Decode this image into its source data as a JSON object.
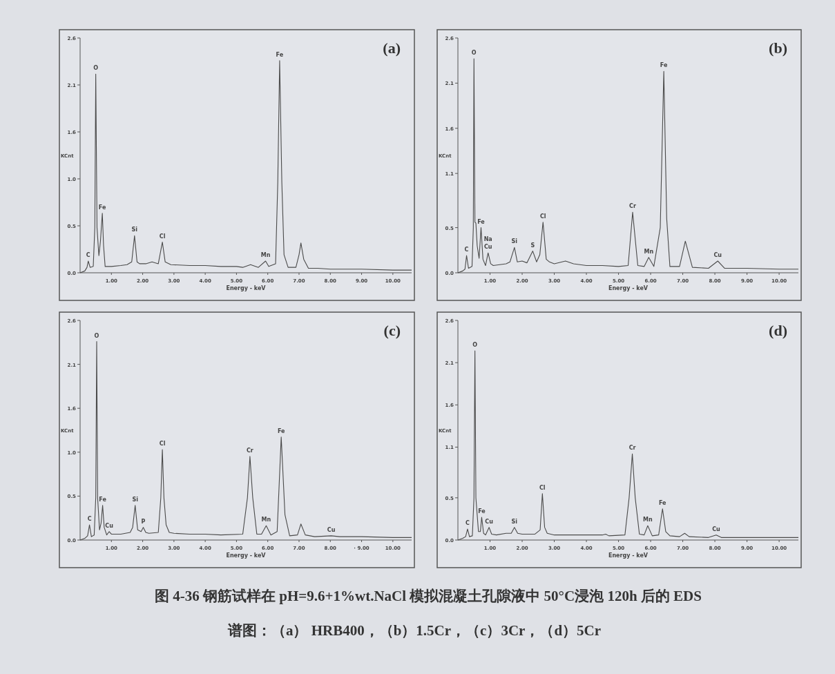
{
  "chart_data": [
    {
      "type": "line",
      "title": "(a)",
      "xlabel": "Energy - keV",
      "ylabel": "KCnt",
      "xlim": [
        0,
        10.6
      ],
      "ylim": [
        0,
        2.6
      ],
      "xticks": [
        {
          "value": 1,
          "label": "1.00"
        },
        {
          "value": 2,
          "label": "2.00"
        },
        {
          "value": 3,
          "label": "3.00"
        },
        {
          "value": 4,
          "label": "4.00"
        },
        {
          "value": 5,
          "label": "5.00"
        },
        {
          "value": 6,
          "label": "6.00"
        },
        {
          "value": 7,
          "label": "7.00"
        },
        {
          "value": 8,
          "label": "8.00"
        },
        {
          "value": 9,
          "label": "9.00"
        },
        {
          "value": 10,
          "label": "10.00"
        }
      ],
      "yticks": [
        {
          "value": 0,
          "label": "0.0"
        },
        {
          "value": 0.52,
          "label": "0.5"
        },
        {
          "value": 1.04,
          "label": "1.0"
        },
        {
          "value": 1.56,
          "label": "1.6"
        },
        {
          "value": 2.08,
          "label": "2.1"
        },
        {
          "value": 2.6,
          "label": "2.6"
        }
      ],
      "color": "#4a4a4a",
      "x": [
        0,
        0.15,
        0.22,
        0.26,
        0.32,
        0.42,
        0.47,
        0.5,
        0.54,
        0.6,
        0.65,
        0.71,
        0.75,
        0.8,
        1.0,
        1.3,
        1.5,
        1.65,
        1.74,
        1.82,
        1.9,
        2.1,
        2.3,
        2.5,
        2.63,
        2.72,
        2.9,
        3.5,
        4.0,
        4.5,
        5.0,
        5.2,
        5.45,
        5.7,
        5.93,
        6.03,
        6.25,
        6.32,
        6.38,
        6.45,
        6.52,
        6.65,
        6.9,
        7.0,
        7.06,
        7.15,
        7.3,
        7.6,
        8.0,
        9.0,
        10.0,
        10.6
      ],
      "values": [
        0,
        0.02,
        0.06,
        0.13,
        0.06,
        0.07,
        0.5,
        2.2,
        0.5,
        0.19,
        0.35,
        0.66,
        0.3,
        0.07,
        0.07,
        0.08,
        0.09,
        0.12,
        0.41,
        0.12,
        0.1,
        0.1,
        0.12,
        0.1,
        0.34,
        0.12,
        0.09,
        0.08,
        0.08,
        0.07,
        0.07,
        0.06,
        0.09,
        0.06,
        0.13,
        0.07,
        0.1,
        1.0,
        2.35,
        1.0,
        0.2,
        0.06,
        0.06,
        0.2,
        0.33,
        0.15,
        0.05,
        0.05,
        0.04,
        0.04,
        0.03,
        0.03
      ],
      "annotations": [
        {
          "text": "C",
          "x": 0.26,
          "y": 0.13
        },
        {
          "text": "O",
          "x": 0.5,
          "y": 2.2
        },
        {
          "text": "Fe",
          "x": 0.71,
          "y": 0.66
        },
        {
          "text": "Si",
          "x": 1.74,
          "y": 0.41
        },
        {
          "text": "Cl",
          "x": 2.63,
          "y": 0.34
        },
        {
          "text": "Mn",
          "x": 5.93,
          "y": 0.13
        },
        {
          "text": "Fe",
          "x": 6.38,
          "y": 2.35
        }
      ]
    },
    {
      "type": "line",
      "title": "(b)",
      "xlabel": "Energy - keV",
      "ylabel": "KCnt",
      "xlim": [
        0,
        10.6
      ],
      "ylim": [
        0,
        2.6
      ],
      "xticks": [
        {
          "value": 1,
          "label": "1.00"
        },
        {
          "value": 2,
          "label": "2.00"
        },
        {
          "value": 3,
          "label": "3.00"
        },
        {
          "value": 4,
          "label": "4.00"
        },
        {
          "value": 5,
          "label": "5.00"
        },
        {
          "value": 6,
          "label": "6.00"
        },
        {
          "value": 7,
          "label": "7.00"
        },
        {
          "value": 8,
          "label": "8.00"
        },
        {
          "value": 9,
          "label": "9.00"
        },
        {
          "value": 10,
          "label": "10.00"
        }
      ],
      "yticks": [
        {
          "value": 0,
          "label": "0.0"
        },
        0.5,
        1.1,
        1.6,
        2.1,
        2.6
      ],
      "color": "#4a4a4a",
      "x": [
        0,
        0.15,
        0.22,
        0.27,
        0.33,
        0.44,
        0.48,
        0.5,
        0.53,
        0.56,
        0.6,
        0.66,
        0.72,
        0.78,
        0.86,
        0.94,
        1.02,
        1.1,
        1.3,
        1.5,
        1.62,
        1.76,
        1.85,
        2.0,
        2.15,
        2.33,
        2.45,
        2.55,
        2.65,
        2.75,
        2.85,
        3.0,
        3.35,
        3.6,
        4.0,
        4.5,
        5.0,
        5.3,
        5.44,
        5.6,
        5.8,
        5.94,
        6.1,
        6.3,
        6.41,
        6.5,
        6.6,
        6.9,
        7.08,
        7.3,
        7.8,
        8.09,
        8.3,
        9.0,
        10.0,
        10.6
      ],
      "values": [
        0,
        0.02,
        0.04,
        0.19,
        0.05,
        0.07,
        0.5,
        2.37,
        0.56,
        0.55,
        0.3,
        0.16,
        0.5,
        0.15,
        0.08,
        0.22,
        0.1,
        0.08,
        0.09,
        0.1,
        0.12,
        0.28,
        0.12,
        0.13,
        0.11,
        0.24,
        0.12,
        0.2,
        0.56,
        0.15,
        0.12,
        0.1,
        0.13,
        0.1,
        0.08,
        0.08,
        0.07,
        0.08,
        0.67,
        0.08,
        0.07,
        0.17,
        0.07,
        0.5,
        2.23,
        0.6,
        0.07,
        0.07,
        0.35,
        0.06,
        0.05,
        0.13,
        0.05,
        0.05,
        0.04,
        0.04
      ],
      "annotations": [
        {
          "text": "C",
          "x": 0.27,
          "y": 0.19
        },
        {
          "text": "O",
          "x": 0.5,
          "y": 2.37
        },
        {
          "text": "Fe",
          "x": 0.72,
          "y": 0.5
        },
        {
          "text": "Na",
          "x": 0.94,
          "y": 0.22
        },
        {
          "text": "Cu",
          "x": 0.94,
          "y": 0.22
        },
        {
          "text": "Si",
          "x": 1.76,
          "y": 0.28
        },
        {
          "text": "S",
          "x": 2.33,
          "y": 0.24
        },
        {
          "text": "Cl",
          "x": 2.65,
          "y": 0.56
        },
        {
          "text": "Cr",
          "x": 5.44,
          "y": 0.67
        },
        {
          "text": "Mn",
          "x": 5.94,
          "y": 0.17
        },
        {
          "text": "Fe",
          "x": 6.41,
          "y": 2.23
        },
        {
          "text": "Cu",
          "x": 8.09,
          "y": 0.13
        }
      ]
    },
    {
      "type": "line",
      "title": "(c)",
      "xlabel": "Energy - keV",
      "ylabel": "KCnt",
      "xlim": [
        0,
        10.6
      ],
      "ylim": [
        0,
        2.6
      ],
      "xticks": [
        {
          "value": 1,
          "label": "1.00"
        },
        {
          "value": 2,
          "label": "2.00"
        },
        {
          "value": 3,
          "label": "3.00"
        },
        {
          "value": 4,
          "label": "4.00"
        },
        {
          "value": 5,
          "label": "5.00"
        },
        {
          "value": 6,
          "label": "6.00"
        },
        {
          "value": 7,
          "label": "7.00"
        },
        {
          "value": 8,
          "label": "8.00"
        },
        {
          "value": 9,
          "label": "· 9.00"
        },
        {
          "value": 10,
          "label": "10.00"
        }
      ],
      "yticks": [
        {
          "value": 0,
          "label": "0.0"
        },
        {
          "value": 0.52,
          "label": "0.5"
        },
        {
          "value": 1.04,
          "label": "1.0"
        },
        {
          "value": 1.56,
          "label": "1.6"
        },
        {
          "value": 2.08,
          "label": "2.1"
        },
        {
          "value": 2.6,
          "label": "2.6"
        }
      ],
      "color": "#4a4a4a",
      "x": [
        0,
        0.15,
        0.24,
        0.3,
        0.36,
        0.45,
        0.5,
        0.53,
        0.56,
        0.62,
        0.67,
        0.72,
        0.77,
        0.85,
        0.93,
        1.0,
        1.3,
        1.6,
        1.68,
        1.76,
        1.84,
        1.95,
        2.02,
        2.1,
        2.2,
        2.5,
        2.58,
        2.63,
        2.68,
        2.75,
        2.85,
        3.0,
        3.5,
        4.0,
        4.5,
        5.2,
        5.35,
        5.43,
        5.52,
        5.65,
        5.8,
        5.95,
        6.1,
        6.3,
        6.43,
        6.55,
        6.7,
        6.95,
        7.06,
        7.2,
        7.5,
        8.03,
        8.3,
        9.0,
        10.0,
        10.6
      ],
      "values": [
        0,
        0.02,
        0.05,
        0.18,
        0.04,
        0.06,
        0.5,
        2.35,
        0.5,
        0.12,
        0.2,
        0.41,
        0.15,
        0.06,
        0.1,
        0.07,
        0.07,
        0.09,
        0.15,
        0.41,
        0.12,
        0.1,
        0.15,
        0.09,
        0.08,
        0.09,
        0.5,
        1.07,
        0.5,
        0.18,
        0.09,
        0.08,
        0.07,
        0.07,
        0.06,
        0.07,
        0.5,
        0.99,
        0.5,
        0.07,
        0.07,
        0.17,
        0.06,
        0.1,
        1.22,
        0.3,
        0.05,
        0.06,
        0.19,
        0.06,
        0.04,
        0.05,
        0.04,
        0.04,
        0.03,
        0.03
      ],
      "annotations": [
        {
          "text": "C",
          "x": 0.3,
          "y": 0.18
        },
        {
          "text": "O",
          "x": 0.53,
          "y": 2.35
        },
        {
          "text": "Fe",
          "x": 0.72,
          "y": 0.41
        },
        {
          "text": "Cu",
          "x": 0.93,
          "y": 0.1
        },
        {
          "text": "Si",
          "x": 1.76,
          "y": 0.41
        },
        {
          "text": "P",
          "x": 2.02,
          "y": 0.15
        },
        {
          "text": "Cl",
          "x": 2.63,
          "y": 1.07
        },
        {
          "text": "Cr",
          "x": 5.43,
          "y": 0.99
        },
        {
          "text": "Mn",
          "x": 5.95,
          "y": 0.17
        },
        {
          "text": "Fe",
          "x": 6.43,
          "y": 1.22
        },
        {
          "text": "Cu",
          "x": 8.03,
          "y": 0.05
        }
      ]
    },
    {
      "type": "line",
      "title": "(d)",
      "xlabel": "Energy - keV",
      "ylabel": "KCnt",
      "xlim": [
        0,
        10.6
      ],
      "ylim": [
        0,
        2.6
      ],
      "xticks": [
        {
          "value": 1,
          "label": "1.00"
        },
        {
          "value": 2,
          "label": "2.00"
        },
        {
          "value": 3,
          "label": "3.00"
        },
        {
          "value": 4,
          "label": "4.00"
        },
        {
          "value": 5,
          "label": "5.00"
        },
        {
          "value": 6,
          "label": "6.00"
        },
        {
          "value": 7,
          "label": "7.00"
        },
        {
          "value": 8,
          "label": "8.00"
        },
        {
          "value": 9,
          "label": "9.00"
        },
        {
          "value": 10,
          "label": "10.00"
        }
      ],
      "yticks": [
        {
          "value": 0,
          "label": "0.0"
        },
        0.5,
        1.1,
        1.6,
        2.1,
        2.6
      ],
      "color": "#4a4a4a",
      "x": [
        0,
        0.15,
        0.24,
        0.3,
        0.36,
        0.45,
        0.5,
        0.53,
        0.56,
        0.64,
        0.7,
        0.74,
        0.8,
        0.86,
        0.97,
        1.05,
        1.2,
        1.5,
        1.66,
        1.76,
        1.86,
        2.0,
        2.4,
        2.56,
        2.63,
        2.7,
        2.78,
        3.0,
        4.0,
        4.5,
        4.6,
        4.7,
        5.2,
        5.33,
        5.43,
        5.52,
        5.65,
        5.8,
        5.91,
        6.05,
        6.25,
        6.37,
        6.47,
        6.6,
        6.9,
        7.06,
        7.2,
        7.8,
        8.04,
        8.2,
        9.0,
        10.0,
        10.6
      ],
      "values": [
        0,
        0.02,
        0.04,
        0.13,
        0.04,
        0.05,
        0.5,
        2.24,
        0.5,
        0.1,
        0.1,
        0.27,
        0.08,
        0.06,
        0.15,
        0.07,
        0.06,
        0.08,
        0.08,
        0.15,
        0.08,
        0.07,
        0.07,
        0.12,
        0.55,
        0.15,
        0.08,
        0.06,
        0.06,
        0.06,
        0.07,
        0.05,
        0.06,
        0.5,
        1.02,
        0.5,
        0.07,
        0.06,
        0.17,
        0.05,
        0.06,
        0.37,
        0.1,
        0.05,
        0.04,
        0.08,
        0.04,
        0.03,
        0.06,
        0.03,
        0.03,
        0.03,
        0.03
      ],
      "annotations": [
        {
          "text": "C",
          "x": 0.3,
          "y": 0.13
        },
        {
          "text": "O",
          "x": 0.53,
          "y": 2.24
        },
        {
          "text": "Fe",
          "x": 0.74,
          "y": 0.27
        },
        {
          "text": "Cu",
          "x": 0.97,
          "y": 0.15
        },
        {
          "text": "Si",
          "x": 1.76,
          "y": 0.15
        },
        {
          "text": "Cl",
          "x": 2.63,
          "y": 0.55
        },
        {
          "text": "Cr",
          "x": 5.43,
          "y": 1.02
        },
        {
          "text": "Mn",
          "x": 5.91,
          "y": 0.17
        },
        {
          "text": "Fe",
          "x": 6.37,
          "y": 0.37
        },
        {
          "text": "Cu",
          "x": 8.04,
          "y": 0.06
        },
        "图 4-36 钢筋试样在 pH=9.6+1%wt.NaCl 模拟混凝土孔隙液中 50°C浸泡 120h 后的 EDS",
        "谱图：（a） HRB400，（b）1.5Cr，（c）3Cr，（d）5Cr"
      ]
    }
  ]
}
